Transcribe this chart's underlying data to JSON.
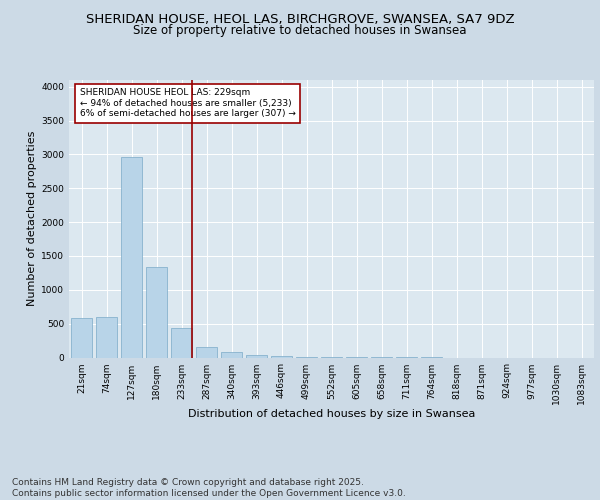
{
  "title1": "SHERIDAN HOUSE, HEOL LAS, BIRCHGROVE, SWANSEA, SA7 9DZ",
  "title2": "Size of property relative to detached houses in Swansea",
  "xlabel": "Distribution of detached houses by size in Swansea",
  "ylabel": "Number of detached properties",
  "categories": [
    "21sqm",
    "74sqm",
    "127sqm",
    "180sqm",
    "233sqm",
    "287sqm",
    "340sqm",
    "393sqm",
    "446sqm",
    "499sqm",
    "552sqm",
    "605sqm",
    "658sqm",
    "711sqm",
    "764sqm",
    "818sqm",
    "871sqm",
    "924sqm",
    "977sqm",
    "1030sqm",
    "1083sqm"
  ],
  "values": [
    590,
    595,
    2960,
    1340,
    430,
    160,
    80,
    40,
    20,
    10,
    3,
    2,
    1,
    1,
    1,
    0,
    0,
    0,
    0,
    0,
    0
  ],
  "bar_color": "#b8d4e8",
  "bar_edge_color": "#7aaac8",
  "vline_index": 4,
  "vline_color": "#990000",
  "annotation_text": "SHERIDAN HOUSE HEOL LAS: 229sqm\n← 94% of detached houses are smaller (5,233)\n6% of semi-detached houses are larger (307) →",
  "annotation_box_facecolor": "#ffffff",
  "annotation_box_edgecolor": "#990000",
  "ylim": [
    0,
    4100
  ],
  "yticks": [
    0,
    500,
    1000,
    1500,
    2000,
    2500,
    3000,
    3500,
    4000
  ],
  "bg_color": "#ccdae6",
  "plot_bg_color": "#dce8f0",
  "grid_color": "#ffffff",
  "footer": "Contains HM Land Registry data © Crown copyright and database right 2025.\nContains public sector information licensed under the Open Government Licence v3.0.",
  "title_fontsize": 9.5,
  "subtitle_fontsize": 8.5,
  "axis_label_fontsize": 8,
  "tick_fontsize": 6.5,
  "annotation_fontsize": 6.5,
  "footer_fontsize": 6.5
}
